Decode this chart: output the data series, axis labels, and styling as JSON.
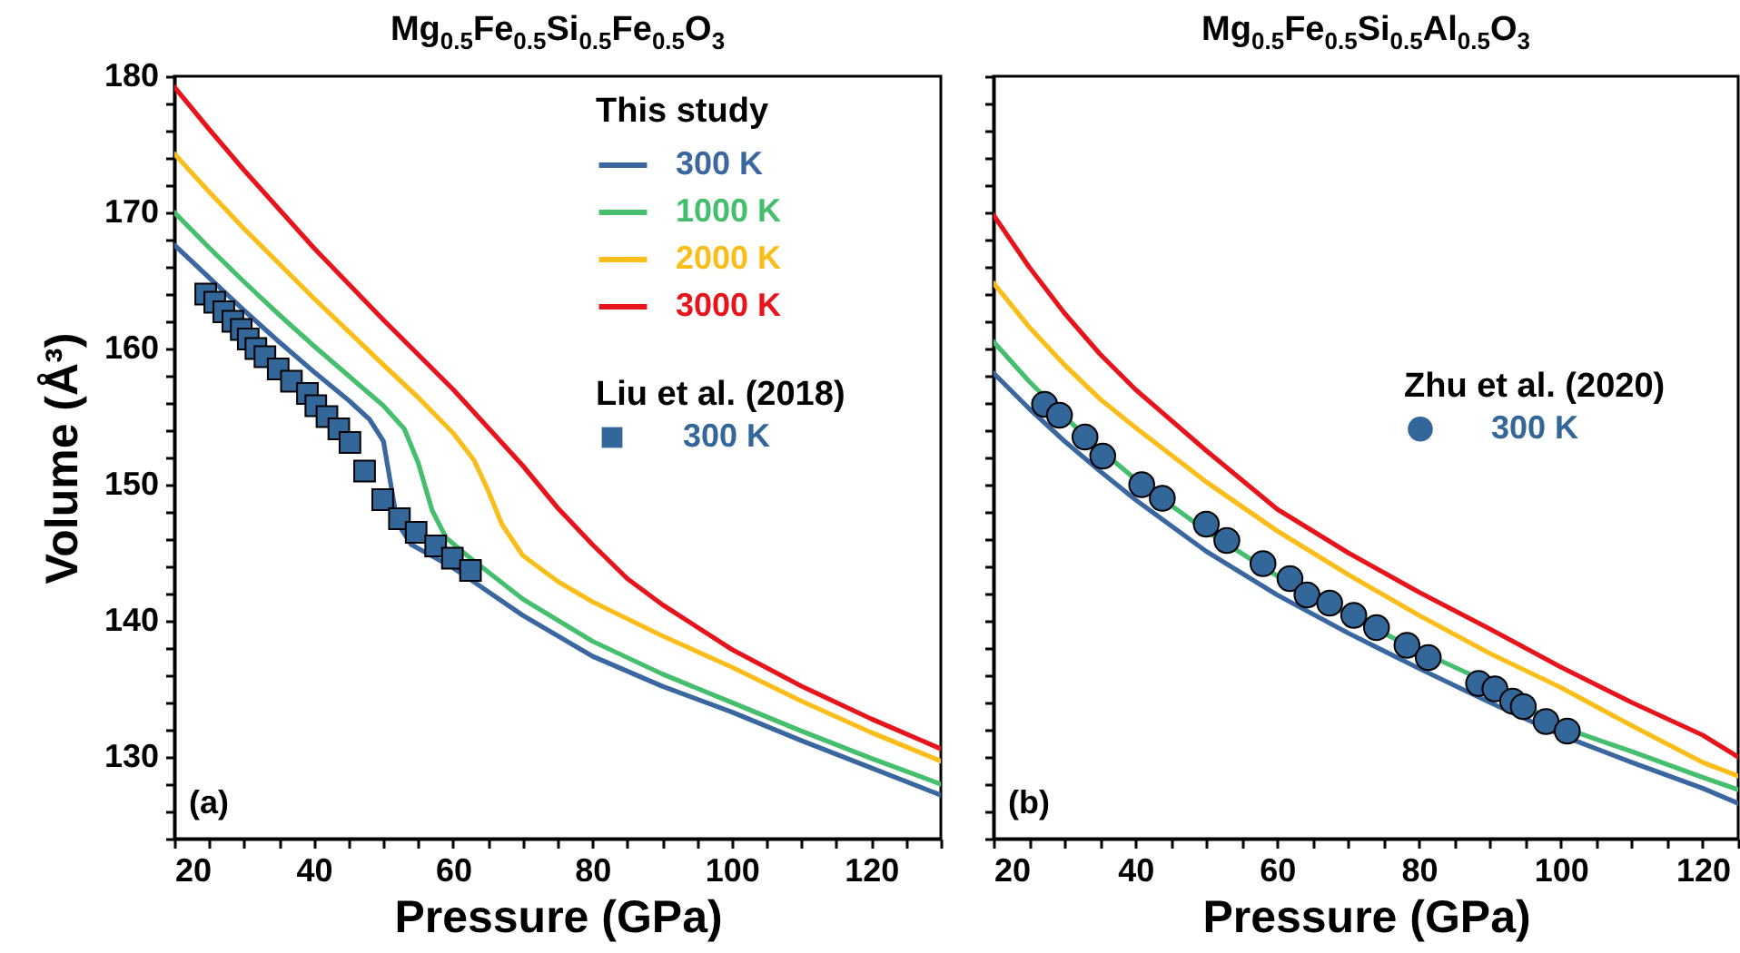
{
  "chart_data": [
    {
      "type": "line",
      "title": "Mg$_{0.5}$Fe$_{0.5}$Si$_{0.5}$Fe$_{0.5}$O$_{3}$",
      "xlabel": "Pressure (GPa)",
      "ylabel": "Volume (Å³)",
      "legend_title": [
        "This study",
        "Liu et al. (2018)"
      ],
      "legend": "top right",
      "annotations": [
        "(a)"
      ],
      "xlim": [
        20,
        130
      ],
      "xticks": [
        20,
        {
          "value": 25,
          "label": null
        },
        {
          "value": 30,
          "label": null
        },
        {
          "value": 35,
          "label": null
        },
        40,
        {
          "value": 45,
          "label": null
        },
        {
          "value": 50,
          "label": null
        },
        {
          "value": 55,
          "label": null
        },
        60,
        {
          "value": 65,
          "label": null
        },
        {
          "value": 70,
          "label": null
        },
        {
          "value": 75,
          "label": null
        },
        80,
        {
          "value": 85,
          "label": null
        },
        {
          "value": 90,
          "label": null
        },
        {
          "value": 95,
          "label": null
        },
        100,
        {
          "value": 105,
          "label": null
        },
        {
          "value": 110,
          "label": null
        },
        {
          "value": 115,
          "label": null
        },
        120,
        {
          "value": 125,
          "label": null
        },
        {
          "value": 130,
          "label": null
        }
      ],
      "ylim": [
        124,
        180
      ],
      "yticks": [
        {
          "value": 124,
          "label": null
        },
        {
          "value": 126,
          "label": null
        },
        {
          "value": 128,
          "label": null
        },
        130,
        {
          "value": 132,
          "label": null
        },
        {
          "value": 134,
          "label": null
        },
        {
          "value": 136,
          "label": null
        },
        {
          "value": 138,
          "label": null
        },
        140,
        {
          "value": 142,
          "label": null
        },
        {
          "value": 144,
          "label": null
        },
        {
          "value": 146,
          "label": null
        },
        {
          "value": 148,
          "label": null
        },
        150,
        {
          "value": 152,
          "label": null
        },
        {
          "value": 154,
          "label": null
        },
        {
          "value": 156,
          "label": null
        },
        {
          "value": 158,
          "label": null
        },
        160,
        {
          "value": 162,
          "label": null
        },
        {
          "value": 164,
          "label": null
        },
        {
          "value": 166,
          "label": null
        },
        {
          "value": 168,
          "label": null
        },
        170,
        {
          "value": 172,
          "label": null
        },
        {
          "value": 174,
          "label": null
        },
        {
          "value": 176,
          "label": null
        },
        {
          "value": 178,
          "label": null
        },
        180
      ],
      "series": [
        {
          "name": "300 K",
          "color": "#3b67a0",
          "x": [
            20,
            25,
            30,
            35,
            40,
            45,
            48,
            50,
            51,
            52,
            54,
            60,
            70,
            80,
            90,
            100,
            110,
            120,
            130
          ],
          "values": [
            167.6,
            165.2,
            162.8,
            160.5,
            158.3,
            156.2,
            154.8,
            153.2,
            150.2,
            147.2,
            145.6,
            143.9,
            140.4,
            137.4,
            135.2,
            133.3,
            131.2,
            129.2,
            127.2
          ]
        },
        {
          "name": "1000 K",
          "color": "#45bf6e",
          "x": [
            20,
            25,
            30,
            35,
            40,
            45,
            50,
            53,
            55,
            57,
            59,
            62,
            70,
            80,
            90,
            100,
            110,
            120,
            130
          ],
          "values": [
            170,
            167.4,
            164.9,
            162.5,
            160.2,
            158,
            155.8,
            154.1,
            151.6,
            148.1,
            146.1,
            144.8,
            141.6,
            138.5,
            136.1,
            134,
            131.9,
            129.9,
            128
          ]
        },
        {
          "name": "2000 K",
          "color": "#fbbd19",
          "x": [
            20,
            25,
            30,
            40,
            50,
            55,
            60,
            63,
            65,
            67,
            70,
            75,
            80,
            90,
            100,
            110,
            120,
            130
          ],
          "values": [
            174.3,
            171.5,
            168.8,
            163.7,
            158.8,
            156.4,
            153.8,
            151.8,
            149.6,
            147.1,
            144.8,
            142.9,
            141.4,
            138.9,
            136.6,
            134.1,
            131.8,
            129.7
          ]
        },
        {
          "name": "3000 K",
          "color": "#e8141b",
          "x": [
            20,
            25,
            30,
            40,
            50,
            60,
            65,
            70,
            75,
            80,
            85,
            90,
            100,
            110,
            120,
            130
          ],
          "values": [
            179.2,
            176.1,
            173.1,
            167.4,
            162.1,
            157,
            154.2,
            151.4,
            148.3,
            145.6,
            143.1,
            141.2,
            137.9,
            135.2,
            132.8,
            130.6
          ]
        },
        {
          "type": "scatter",
          "name": "300 K",
          "color": "#336699",
          "marker": "square",
          "x": [
            24.5,
            25.8,
            27.1,
            28.4,
            29.6,
            30.6,
            31.7,
            33.0,
            34.9,
            36.8,
            39.1,
            40.3,
            41.9,
            43.6,
            45.2,
            47.3,
            49.9,
            52.3,
            54.7,
            57.5,
            59.9,
            62.5
          ],
          "values": [
            164.0,
            163.4,
            162.7,
            162.0,
            161.4,
            160.7,
            160.0,
            159.4,
            158.5,
            157.6,
            156.7,
            155.8,
            155.0,
            154.1,
            153.1,
            151.0,
            148.9,
            147.5,
            146.5,
            145.5,
            144.6,
            143.7
          ]
        }
      ]
    },
    {
      "type": "line",
      "title": "Mg$_{0.5}$Fe$_{0.5}$Si$_{0.5}$Al$_{0.5}$O$_{3}$",
      "xlabel": "Pressure (GPa)",
      "legend_title": "Zhu et al. (2020)",
      "legend": "right",
      "annotations": [
        "(b)"
      ],
      "tick_labels": "x",
      "xlim": [
        20,
        125
      ],
      "xticks": [
        20,
        {
          "value": 25,
          "label": null
        },
        {
          "value": 30,
          "label": null
        },
        {
          "value": 35,
          "label": null
        },
        40,
        {
          "value": 45,
          "label": null
        },
        {
          "value": 50,
          "label": null
        },
        {
          "value": 55,
          "label": null
        },
        60,
        {
          "value": 65,
          "label": null
        },
        {
          "value": 70,
          "label": null
        },
        {
          "value": 75,
          "label": null
        },
        80,
        {
          "value": 85,
          "label": null
        },
        {
          "value": 90,
          "label": null
        },
        {
          "value": 95,
          "label": null
        },
        100,
        {
          "value": 105,
          "label": null
        },
        {
          "value": 110,
          "label": null
        },
        {
          "value": 115,
          "label": null
        },
        120,
        {
          "value": 125,
          "label": null
        }
      ],
      "ylim": [
        124,
        180
      ],
      "yticks": [
        {
          "value": 124,
          "label": null
        },
        {
          "value": 126,
          "label": null
        },
        {
          "value": 128,
          "label": null
        },
        {
          "value": 130,
          "label": null
        },
        {
          "value": 132,
          "label": null
        },
        {
          "value": 134,
          "label": null
        },
        {
          "value": 136,
          "label": null
        },
        {
          "value": 138,
          "label": null
        },
        {
          "value": 140,
          "label": null
        },
        {
          "value": 142,
          "label": null
        },
        {
          "value": 144,
          "label": null
        },
        {
          "value": 146,
          "label": null
        },
        {
          "value": 148,
          "label": null
        },
        {
          "value": 150,
          "label": null
        },
        {
          "value": 152,
          "label": null
        },
        {
          "value": 154,
          "label": null
        },
        {
          "value": 156,
          "label": null
        },
        {
          "value": 158,
          "label": null
        },
        {
          "value": 160,
          "label": null
        },
        {
          "value": 162,
          "label": null
        },
        {
          "value": 164,
          "label": null
        },
        {
          "value": 166,
          "label": null
        },
        {
          "value": 168,
          "label": null
        },
        {
          "value": 170,
          "label": null
        },
        {
          "value": 172,
          "label": null
        },
        {
          "value": 174,
          "label": null
        },
        {
          "value": 176,
          "label": null
        },
        {
          "value": 178,
          "label": null
        },
        {
          "value": 180,
          "label": null
        }
      ],
      "series": [
        {
          "color": "#3b67a0",
          "x": [
            20,
            25,
            30,
            35,
            40,
            50,
            60,
            70,
            80,
            90,
            100,
            110,
            120,
            125
          ],
          "values": [
            158.2,
            155.6,
            153.2,
            151,
            148.9,
            145.1,
            141.9,
            139.1,
            136.5,
            134.0,
            131.6,
            129.6,
            127.7,
            126.6
          ]
        },
        {
          "color": "#45bf6e",
          "x": [
            20,
            25,
            30,
            35,
            40,
            50,
            60,
            70,
            80,
            90,
            100,
            110,
            120,
            125
          ],
          "values": [
            160.5,
            157.6,
            155,
            152.6,
            150.4,
            146.6,
            143.3,
            140.4,
            137.8,
            135.4,
            132.2,
            130.4,
            128.5,
            127.6
          ]
        },
        {
          "color": "#fbbd19",
          "x": [
            20,
            25,
            30,
            35,
            40,
            50,
            60,
            70,
            80,
            90,
            100,
            110,
            120,
            125
          ],
          "values": [
            164.8,
            161.6,
            158.8,
            156.3,
            154.2,
            150.2,
            146.6,
            143.4,
            140.4,
            137.6,
            135.1,
            132.3,
            129.6,
            128.6
          ]
        },
        {
          "color": "#e8141b",
          "x": [
            20,
            25,
            30,
            35,
            40,
            50,
            60,
            70,
            80,
            90,
            100,
            110,
            120,
            125
          ],
          "values": [
            169.8,
            166,
            162.6,
            159.6,
            157,
            152.5,
            148.2,
            145,
            142.1,
            139.4,
            136.6,
            134,
            131.6,
            130
          ]
        },
        {
          "type": "scatter",
          "name": "300 K",
          "color": "#336699",
          "marker": "circle",
          "x": [
            27.2,
            29.3,
            32.9,
            35.4,
            40.9,
            43.8,
            50.0,
            52.9,
            58.0,
            61.8,
            64.2,
            67.4,
            70.8,
            74.0,
            78.3,
            81.3,
            88.4,
            90.7,
            93.2,
            94.7,
            97.9,
            100.9
          ],
          "values": [
            155.9,
            155.1,
            153.5,
            152.1,
            150.0,
            149.0,
            147.1,
            145.9,
            144.2,
            143.1,
            141.9,
            141.3,
            140.4,
            139.5,
            138.2,
            137.3,
            135.4,
            135.0,
            134.1,
            133.7,
            132.6,
            131.9
          ]
        }
      ]
    }
  ]
}
